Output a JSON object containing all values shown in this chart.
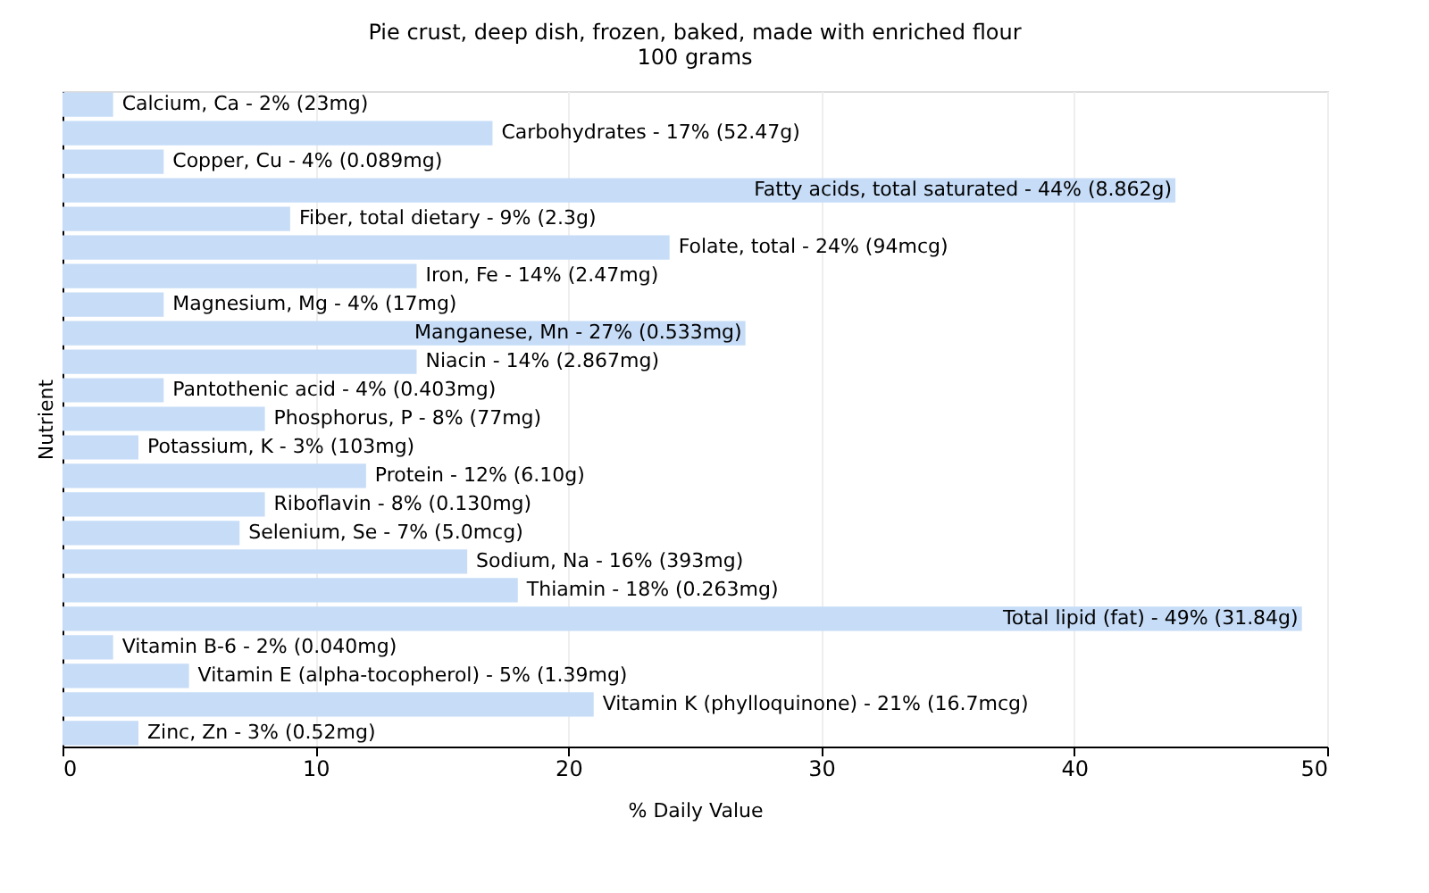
{
  "chart_data": {
    "type": "bar",
    "orientation": "horizontal",
    "title": "Pie crust, deep dish, frozen, baked, made with enriched flour",
    "subtitle": "100 grams",
    "xlabel": "% Daily Value",
    "ylabel": "Nutrient",
    "categories": [
      "Calcium, Ca -",
      "Carbohydrates -",
      "Copper, Cu -",
      "Fatty acids, total saturated -",
      "Fiber, total dietary -",
      "Folate, total -",
      "Iron, Fe -",
      "Magnesium, Mg -",
      "Manganese, Mn -",
      "Niacin -",
      "Pantothenic acid -",
      "Phosphorus, P -",
      "Potassium, K -",
      "Protein -",
      "Riboflavin -",
      "Selenium, Se -",
      "Sodium, Na -",
      "Thiamin -",
      "Total lipid (fat) -",
      "Vitamin B-6 -",
      "Vitamin E (alpha-tocopherol) -",
      "Vitamin K (phylloquinone) -",
      "Zinc, Zn -"
    ],
    "values": [
      2,
      17,
      4,
      44,
      9,
      24,
      14,
      4,
      27,
      14,
      4,
      8,
      3,
      12,
      8,
      7,
      16,
      18,
      49,
      2,
      5,
      21,
      3
    ],
    "value_labels": [
      "2% (23mg)",
      "17% (52.47g)",
      "4% (0.089mg)",
      "44% (8.862g)",
      "9% (2.3g)",
      "24% (94mcg)",
      "14% (2.47mg)",
      "4% (17mg)",
      "27% (0.533mg)",
      "14% (2.867mg)",
      "4% (0.403mg)",
      "8% (77mg)",
      "3% (103mg)",
      "12% (6.10g)",
      "8% (0.130mg)",
      "7% (5.0mcg)",
      "16% (393mg)",
      "18% (0.263mg)",
      "49% (31.84g)",
      "2% (0.040mg)",
      "5% (1.39mg)",
      "21% (16.7mcg)",
      "3% (0.52mg)"
    ],
    "color": "#c6dcf7",
    "xlim": [
      0,
      50
    ],
    "xticks": [
      0,
      10,
      20,
      30,
      40,
      50
    ],
    "grid": "x",
    "tick_labels": "x"
  }
}
